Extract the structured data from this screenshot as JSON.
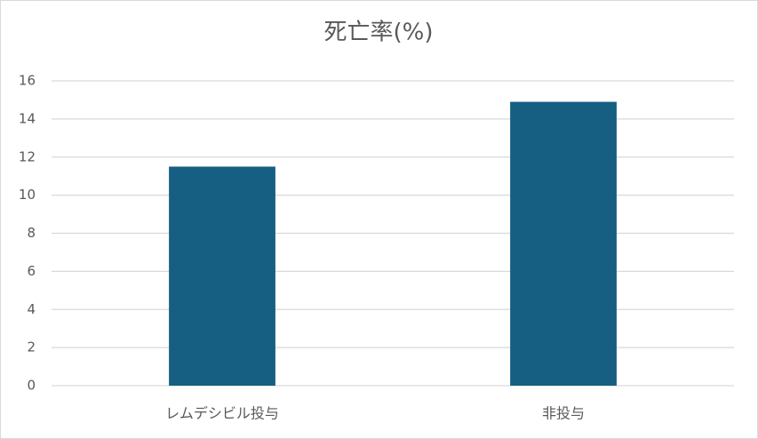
{
  "chart_data": {
    "type": "bar",
    "title": "死亡率(%)",
    "categories": [
      "レムデシビル投与",
      "非投与"
    ],
    "values": [
      11.5,
      14.9
    ],
    "color": "#175f82",
    "ylim": [
      0,
      16
    ],
    "yticks": [
      0,
      2,
      4,
      6,
      8,
      10,
      12,
      14,
      16
    ],
    "grid": true
  }
}
